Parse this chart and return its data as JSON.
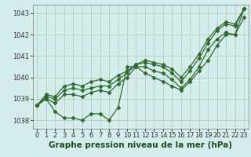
{
  "xlabel": "Graphe pression niveau de la mer (hPa)",
  "plot_bg_color": "#d4eeed",
  "line_color": "#2d6a2d",
  "grid_color": "#b0c8b0",
  "x_ticks": [
    0,
    1,
    2,
    3,
    4,
    5,
    6,
    7,
    8,
    9,
    10,
    11,
    12,
    13,
    14,
    15,
    16,
    17,
    18,
    19,
    20,
    21,
    22,
    23
  ],
  "ylim": [
    1037.6,
    1043.4
  ],
  "yticks": [
    1038,
    1039,
    1040,
    1041,
    1042,
    1043
  ],
  "series": [
    [
      1038.7,
      1039.0,
      1038.4,
      1038.1,
      1038.1,
      1038.0,
      1038.3,
      1038.3,
      1038.0,
      1038.6,
      1040.5,
      1040.5,
      1040.2,
      1040.0,
      1039.8,
      1039.6,
      1039.4,
      1039.8,
      1040.3,
      1040.8,
      1041.5,
      1042.0,
      1042.0,
      1043.2
    ],
    [
      1038.7,
      1039.0,
      1038.8,
      1039.2,
      1039.2,
      1039.1,
      1039.3,
      1039.4,
      1039.3,
      1039.7,
      1040.0,
      1040.5,
      1040.5,
      1040.3,
      1040.2,
      1039.9,
      1039.5,
      1039.9,
      1040.5,
      1041.3,
      1041.8,
      1042.1,
      1042.0,
      1042.8
    ],
    [
      1038.7,
      1039.1,
      1039.0,
      1039.4,
      1039.5,
      1039.4,
      1039.5,
      1039.6,
      1039.6,
      1039.9,
      1040.2,
      1040.6,
      1040.7,
      1040.6,
      1040.5,
      1040.2,
      1039.8,
      1040.3,
      1040.9,
      1041.6,
      1042.2,
      1042.5,
      1042.4,
      1043.2
    ],
    [
      1038.7,
      1039.2,
      1039.1,
      1039.6,
      1039.7,
      1039.6,
      1039.8,
      1039.9,
      1039.8,
      1040.1,
      1040.3,
      1040.6,
      1040.8,
      1040.7,
      1040.6,
      1040.4,
      1040.0,
      1040.5,
      1041.1,
      1041.8,
      1042.3,
      1042.6,
      1042.5,
      1043.2
    ]
  ],
  "marker": "D",
  "markersize": 2.5,
  "linewidth": 0.9,
  "xlabel_fontsize": 7.5,
  "tick_fontsize": 6,
  "xlabel_color": "#1a4a1a"
}
